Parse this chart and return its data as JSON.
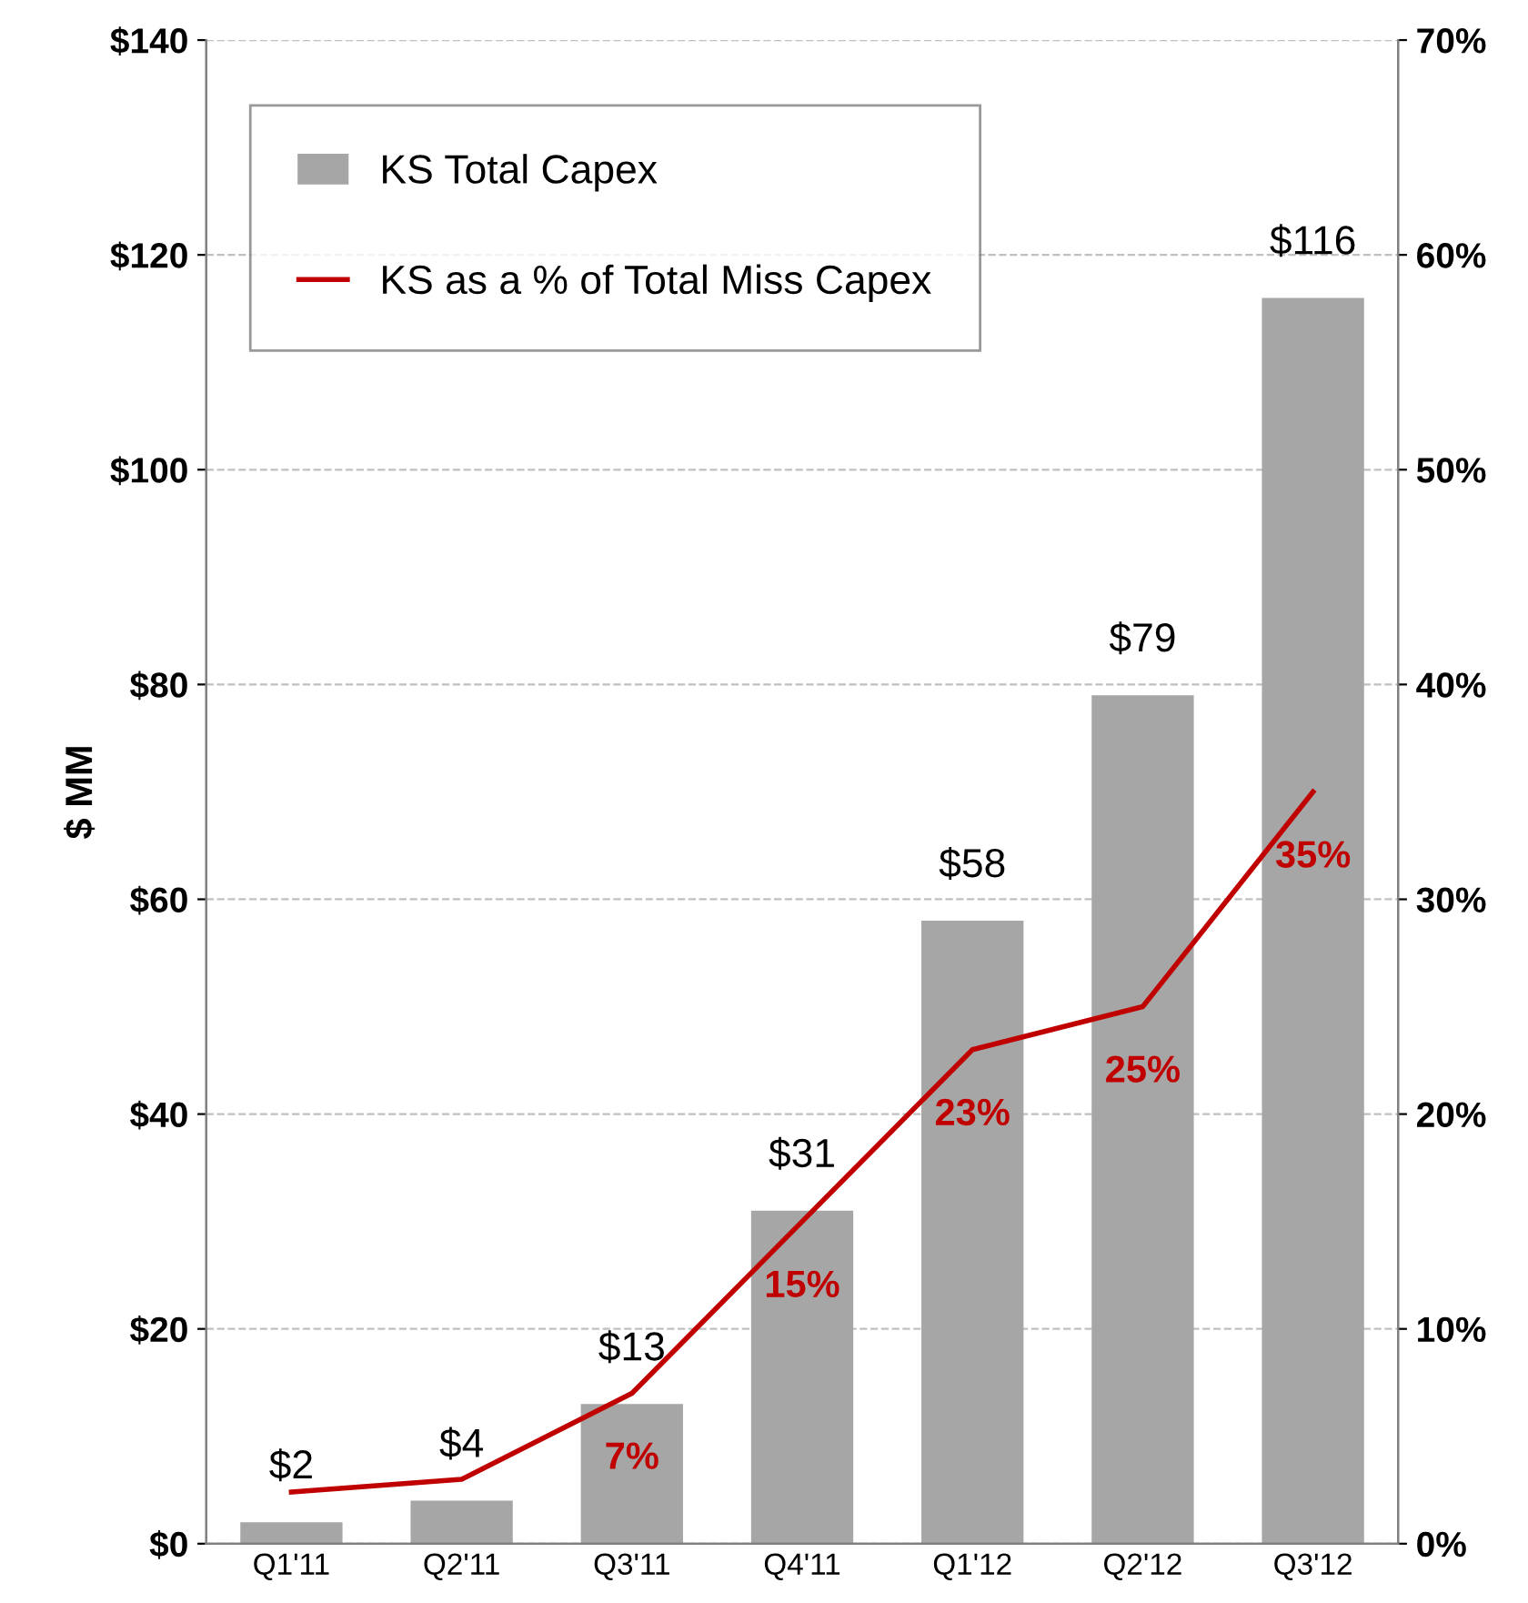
{
  "chart_data": {
    "type": "bar",
    "ylabel": "$ MM",
    "categories": [
      "Q1'11",
      "Q2'11",
      "Q3'11",
      "Q4'11",
      "Q1'12",
      "Q2'12",
      "Q3'12"
    ],
    "series": [
      {
        "name": "KS Total Capex",
        "color": "#a6a6a6",
        "values": [
          2,
          4,
          13,
          31,
          58,
          79,
          116
        ],
        "value_labels": [
          "$2",
          "$4",
          "$13",
          "$31",
          "$58",
          "$79",
          "$116"
        ]
      },
      {
        "name": "KS as a % of Total Miss Capex",
        "type": "line",
        "axis": "y2",
        "color": "#c00000",
        "values": [
          2.4,
          3,
          7,
          15,
          23,
          25,
          35
        ],
        "value_labels": [
          null,
          null,
          "7%",
          "15%",
          "23%",
          "25%",
          "35%"
        ]
      }
    ],
    "ylim": [
      0,
      140
    ],
    "yticks": [
      {
        "value": 0,
        "label": "$0"
      },
      {
        "value": 20,
        "label": "$20"
      },
      {
        "value": 40,
        "label": "$40"
      },
      {
        "value": 60,
        "label": "$60"
      },
      {
        "value": 80,
        "label": "$80"
      },
      {
        "value": 100,
        "label": "$100"
      },
      {
        "value": 120,
        "label": "$120"
      },
      {
        "value": 140,
        "label": "$140"
      }
    ],
    "y2lim": [
      0,
      70
    ],
    "y2ticks": [
      {
        "value": 0,
        "label": "0%"
      },
      {
        "value": 10,
        "label": "10%"
      },
      {
        "value": 20,
        "label": "20%"
      },
      {
        "value": 30,
        "label": "30%"
      },
      {
        "value": 40,
        "label": "40%"
      },
      {
        "value": 50,
        "label": "50%"
      },
      {
        "value": 60,
        "label": "60%"
      },
      {
        "value": 70,
        "label": "70%"
      }
    ],
    "grid": "y",
    "legend": "top left",
    "marker": "none",
    "line_style": "solid"
  }
}
